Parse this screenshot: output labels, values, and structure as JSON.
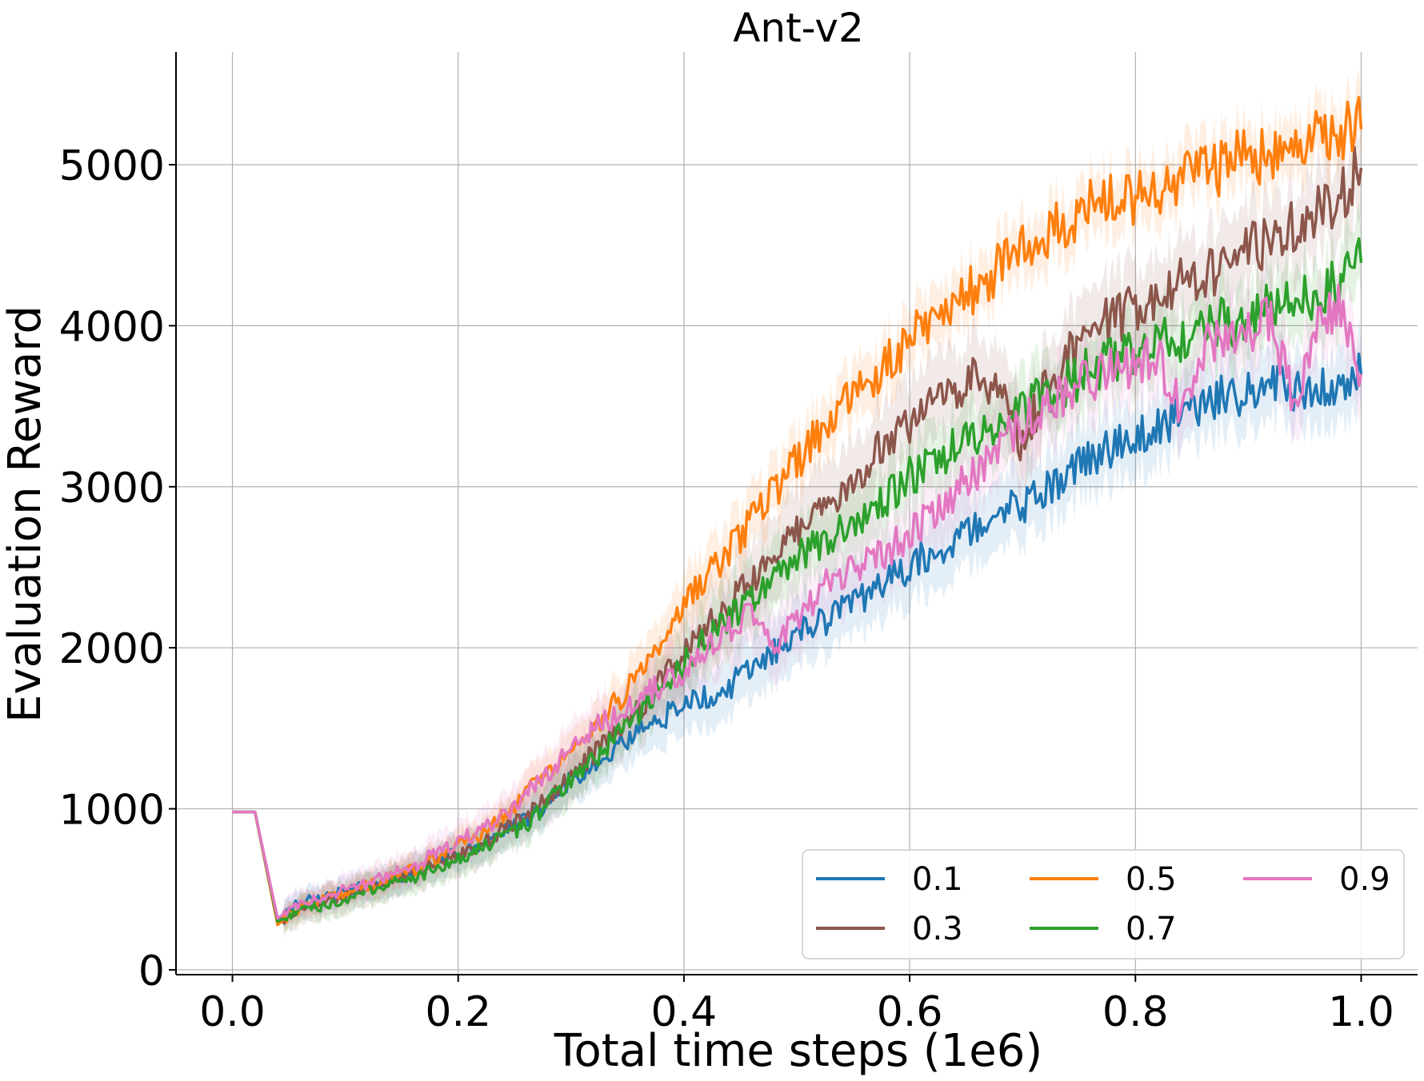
{
  "chart_data": {
    "type": "line",
    "title": "Ant-v2",
    "xlabel": "Total time steps (1e6)",
    "ylabel": "Evaluation Reward",
    "xlim": [
      -0.05,
      1.05
    ],
    "ylim": [
      -30,
      5700
    ],
    "xticks": [
      0.0,
      0.2,
      0.4,
      0.6,
      0.8,
      1.0
    ],
    "xtick_labels": [
      "0.0",
      "0.2",
      "0.4",
      "0.6",
      "0.8",
      "1.0"
    ],
    "yticks": [
      0,
      1000,
      2000,
      3000,
      4000,
      5000
    ],
    "ytick_labels": [
      "0",
      "1000",
      "2000",
      "3000",
      "4000",
      "5000"
    ],
    "grid": true,
    "legend_position": "lower-right",
    "legend_columns": 3,
    "legend_order": [
      "0.1",
      "0.5",
      "0.9",
      "0.3",
      "0.7"
    ],
    "x": [
      0.0,
      0.02,
      0.04,
      0.06,
      0.08,
      0.1,
      0.12,
      0.14,
      0.16,
      0.18,
      0.2,
      0.22,
      0.24,
      0.26,
      0.28,
      0.3,
      0.32,
      0.34,
      0.36,
      0.38,
      0.4,
      0.42,
      0.44,
      0.46,
      0.48,
      0.5,
      0.52,
      0.54,
      0.56,
      0.58,
      0.6,
      0.62,
      0.64,
      0.66,
      0.68,
      0.7,
      0.72,
      0.74,
      0.76,
      0.78,
      0.8,
      0.82,
      0.84,
      0.86,
      0.88,
      0.9,
      0.92,
      0.94,
      0.96,
      0.98,
      1.0
    ],
    "series": [
      {
        "name": "0.1",
        "color": "#1f77b4",
        "band": 220,
        "values": [
          980,
          980,
          300,
          420,
          440,
          490,
          520,
          560,
          600,
          660,
          740,
          780,
          850,
          930,
          1040,
          1180,
          1290,
          1380,
          1480,
          1560,
          1650,
          1700,
          1760,
          1880,
          1980,
          2080,
          2150,
          2230,
          2320,
          2420,
          2510,
          2590,
          2680,
          2760,
          2820,
          2890,
          2980,
          3090,
          3190,
          3260,
          3320,
          3380,
          3430,
          3500,
          3560,
          3600,
          3620,
          3580,
          3600,
          3650,
          3700
        ]
      },
      {
        "name": "0.3",
        "color": "#8c564b",
        "band": 260,
        "values": [
          980,
          980,
          290,
          380,
          420,
          460,
          510,
          550,
          600,
          660,
          710,
          780,
          870,
          950,
          1080,
          1220,
          1340,
          1470,
          1610,
          1790,
          1960,
          2120,
          2260,
          2420,
          2560,
          2700,
          2840,
          2990,
          3140,
          3290,
          3400,
          3500,
          3600,
          3700,
          3620,
          3250,
          3620,
          3800,
          3950,
          4050,
          4100,
          4180,
          4250,
          4300,
          4380,
          4450,
          4550,
          4620,
          4700,
          4800,
          4980
        ]
      },
      {
        "name": "0.5",
        "color": "#ff7f0e",
        "band": 180,
        "values": [
          980,
          980,
          280,
          390,
          430,
          480,
          520,
          570,
          620,
          690,
          770,
          850,
          960,
          1090,
          1230,
          1370,
          1510,
          1660,
          1840,
          2060,
          2260,
          2430,
          2600,
          2780,
          2960,
          3150,
          3330,
          3490,
          3640,
          3780,
          3910,
          4030,
          4150,
          4260,
          4370,
          4460,
          4560,
          4640,
          4720,
          4780,
          4820,
          4860,
          4920,
          4960,
          4990,
          5040,
          5080,
          5120,
          5180,
          5240,
          5220
        ]
      },
      {
        "name": "0.7",
        "color": "#2ca02c",
        "band": 220,
        "values": [
          980,
          980,
          300,
          370,
          400,
          440,
          490,
          530,
          570,
          630,
          700,
          750,
          820,
          900,
          1040,
          1170,
          1310,
          1450,
          1600,
          1750,
          1910,
          2050,
          2170,
          2320,
          2460,
          2560,
          2640,
          2730,
          2840,
          2940,
          3060,
          3150,
          3240,
          3330,
          3410,
          3490,
          3580,
          3650,
          3720,
          3780,
          3830,
          3880,
          3930,
          3980,
          4020,
          4060,
          4110,
          4150,
          4200,
          4250,
          4390
        ]
      },
      {
        "name": "0.9",
        "color": "#e377c2",
        "band": 230,
        "values": [
          980,
          980,
          320,
          410,
          450,
          500,
          540,
          590,
          640,
          720,
          800,
          860,
          950,
          1090,
          1230,
          1360,
          1490,
          1590,
          1680,
          1770,
          1850,
          2010,
          2120,
          2200,
          2010,
          2180,
          2350,
          2470,
          2540,
          2600,
          2700,
          2820,
          2960,
          3110,
          3260,
          3390,
          3500,
          3590,
          3660,
          3720,
          3780,
          3830,
          3450,
          3850,
          3920,
          3990,
          4040,
          3500,
          3950,
          4150,
          3700
        ]
      }
    ]
  }
}
